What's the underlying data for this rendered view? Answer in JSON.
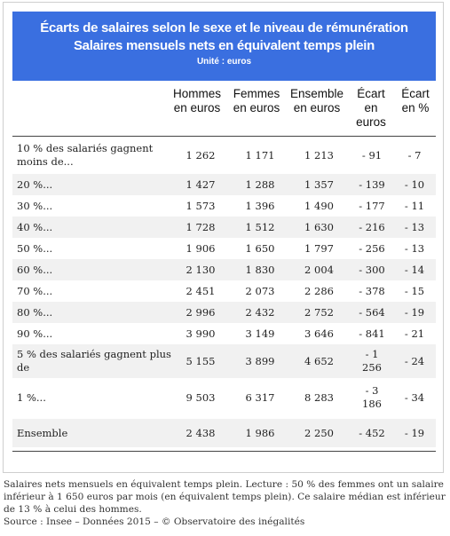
{
  "header": {
    "title_line1": "Écarts de salaires selon le sexe et le niveau de rémunération",
    "title_line2": "Salaires mensuels nets en équivalent temps plein",
    "unit": "Unité : euros"
  },
  "columns": {
    "hommes": [
      "Hommes",
      "en euros"
    ],
    "femmes": [
      "Femmes",
      "en euros"
    ],
    "ensemble": [
      "Ensemble",
      "en euros"
    ],
    "ecart_euros": [
      "Écart",
      "en",
      "euros"
    ],
    "ecart_pct": [
      "Écart",
      "en %"
    ]
  },
  "rows": [
    {
      "label": "10 % des salariés gagnent moins de...",
      "hommes": "1 262",
      "femmes": "1 171",
      "ensemble": "1 213",
      "ecart_euros": "- 91",
      "ecart_pct": "- 7"
    },
    {
      "label": "20 %...",
      "hommes": "1 427",
      "femmes": "1 288",
      "ensemble": "1 357",
      "ecart_euros": "- 139",
      "ecart_pct": "- 10"
    },
    {
      "label": "30 %...",
      "hommes": "1 573",
      "femmes": "1 396",
      "ensemble": "1 490",
      "ecart_euros": "- 177",
      "ecart_pct": "- 11"
    },
    {
      "label": "40 %...",
      "hommes": "1 728",
      "femmes": "1 512",
      "ensemble": "1 630",
      "ecart_euros": "- 216",
      "ecart_pct": "- 13"
    },
    {
      "label": "50 %...",
      "hommes": "1 906",
      "femmes": "1 650",
      "ensemble": "1 797",
      "ecart_euros": "- 256",
      "ecart_pct": "- 13"
    },
    {
      "label": "60 %...",
      "hommes": "2 130",
      "femmes": "1 830",
      "ensemble": "2 004",
      "ecart_euros": "- 300",
      "ecart_pct": "- 14"
    },
    {
      "label": "70 %...",
      "hommes": "2 451",
      "femmes": "2 073",
      "ensemble": "2 286",
      "ecart_euros": "- 378",
      "ecart_pct": "- 15"
    },
    {
      "label": "80 %...",
      "hommes": "2 996",
      "femmes": "2 432",
      "ensemble": "2 752",
      "ecart_euros": "- 564",
      "ecart_pct": "- 19"
    },
    {
      "label": "90 %...",
      "hommes": "3 990",
      "femmes": "3 149",
      "ensemble": "3 646",
      "ecart_euros": "- 841",
      "ecart_pct": "- 21"
    },
    {
      "label": "5 % des salariés gagnent plus de",
      "hommes": "5 155",
      "femmes": "3 899",
      "ensemble": "4 652",
      "ecart_euros": "- 1 256",
      "ecart_pct": "- 24"
    },
    {
      "label": "1 %...",
      "hommes": "9 503",
      "femmes": "6 317",
      "ensemble": "8 283",
      "ecart_euros": "- 3 186",
      "ecart_pct": "- 34"
    },
    {
      "label": "Ensemble",
      "hommes": "2 438",
      "femmes": "1 986",
      "ensemble": "2 250",
      "ecart_euros": "- 452",
      "ecart_pct": "- 19"
    }
  ],
  "caption": {
    "text": "Salaires nets mensuels en équivalent temps plein. Lecture : 50 % des femmes ont un salaire inférieur à 1 650 euros par mois (en équivalent temps plein). Ce salaire médian est inférieur de 13 % à celui des hommes.",
    "source": "Source : Insee – Données 2015 – © Observatoire des inégalités"
  },
  "colors": {
    "header_bg": "#3a6fe0",
    "stripe": "#f1f1f1"
  }
}
